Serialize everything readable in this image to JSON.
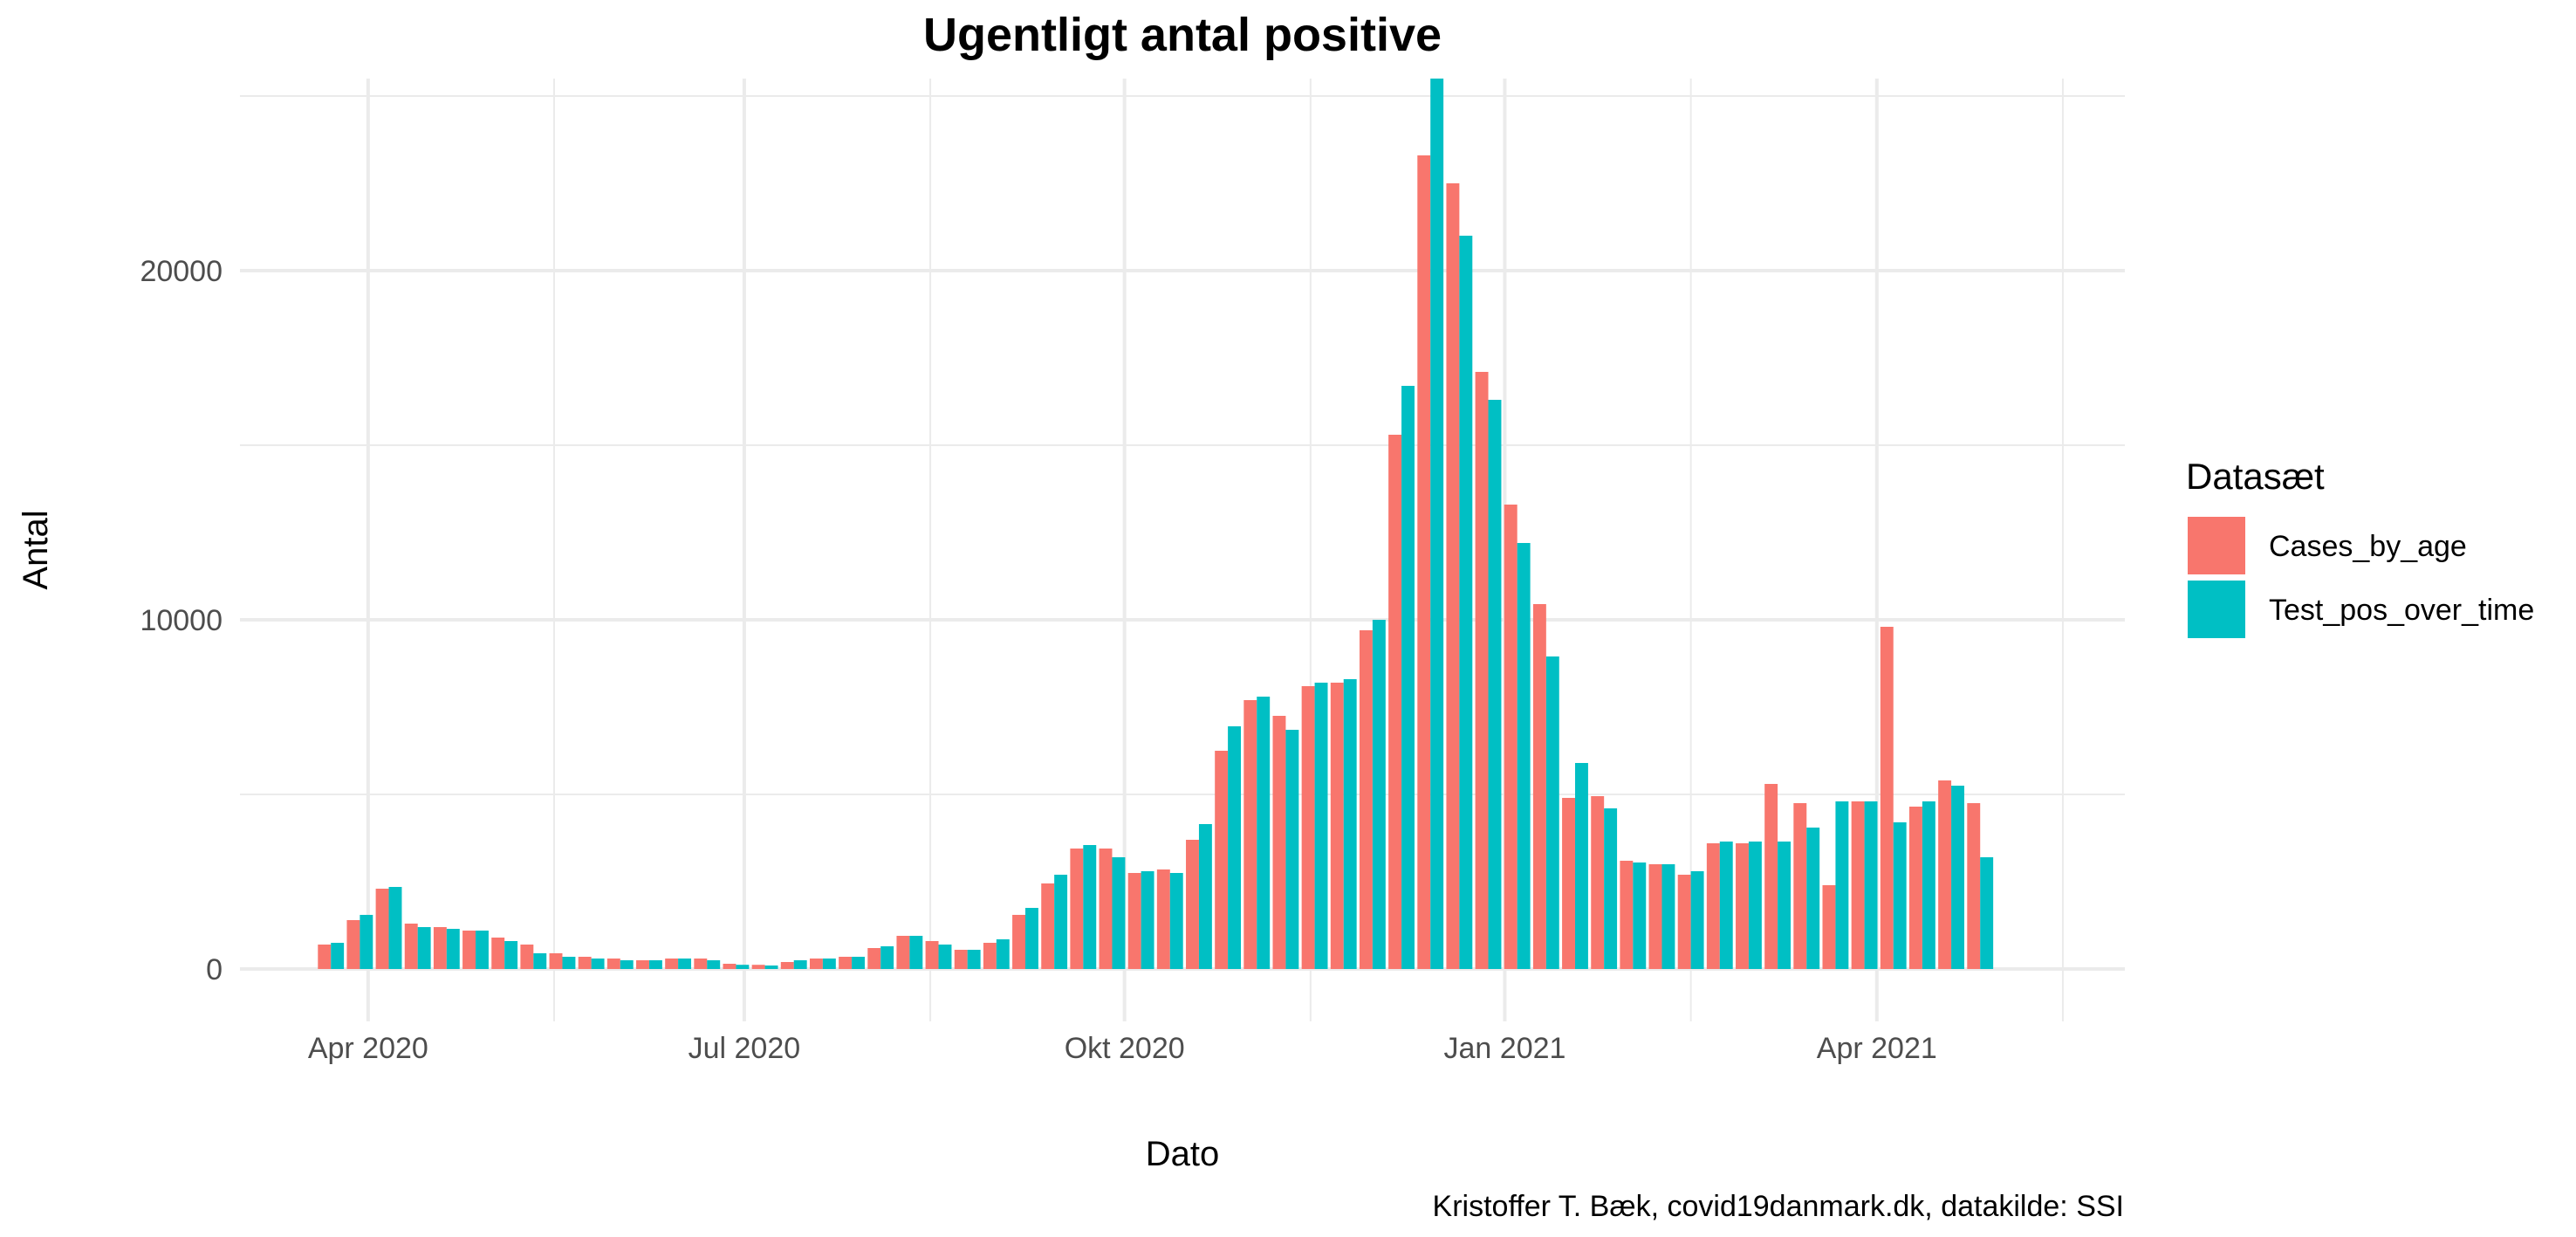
{
  "chart_data": {
    "type": "bar",
    "title": "Ugentligt antal positive",
    "xlabel": "Dato",
    "ylabel": "Antal",
    "caption": "Kristoffer T. Bæk, covid19danmark.dk, datakilde: SSI",
    "ylim": [
      -1500,
      25500
    ],
    "y_ticks": [
      0,
      10000,
      20000
    ],
    "xlim": [
      "2020-03-01",
      "2021-05-31"
    ],
    "x_ticks": [
      {
        "label": "Apr 2020",
        "date": "2020-04-01"
      },
      {
        "label": "Jul 2020",
        "date": "2020-07-01"
      },
      {
        "label": "Okt 2020",
        "date": "2020-10-01"
      },
      {
        "label": "Jan 2021",
        "date": "2021-01-01"
      },
      {
        "label": "Apr 2021",
        "date": "2021-04-01"
      }
    ],
    "grid": true,
    "legend": {
      "title": "Datasæt",
      "position": "right"
    },
    "weeks": [
      "2020-03-23",
      "2020-03-30",
      "2020-04-06",
      "2020-04-13",
      "2020-04-20",
      "2020-04-27",
      "2020-05-04",
      "2020-05-11",
      "2020-05-18",
      "2020-05-25",
      "2020-06-01",
      "2020-06-08",
      "2020-06-15",
      "2020-06-22",
      "2020-06-29",
      "2020-07-06",
      "2020-07-13",
      "2020-07-20",
      "2020-07-27",
      "2020-08-03",
      "2020-08-10",
      "2020-08-17",
      "2020-08-24",
      "2020-08-31",
      "2020-09-07",
      "2020-09-14",
      "2020-09-21",
      "2020-09-28",
      "2020-10-05",
      "2020-10-12",
      "2020-10-19",
      "2020-10-26",
      "2020-11-02",
      "2020-11-09",
      "2020-11-16",
      "2020-11-23",
      "2020-11-30",
      "2020-12-07",
      "2020-12-14",
      "2020-12-21",
      "2020-12-28",
      "2021-01-04",
      "2021-01-11",
      "2021-01-18",
      "2021-01-25",
      "2021-02-01",
      "2021-02-08",
      "2021-02-15",
      "2021-02-22",
      "2021-03-01",
      "2021-03-08",
      "2021-03-15",
      "2021-03-22",
      "2021-03-29",
      "2021-04-05",
      "2021-04-12",
      "2021-04-19",
      "2021-04-26"
    ],
    "series": [
      {
        "name": "Cases_by_age",
        "color": "#F8766D",
        "values": [
          700,
          1400,
          2300,
          1300,
          1200,
          1100,
          900,
          700,
          450,
          350,
          300,
          250,
          300,
          300,
          150,
          120,
          200,
          300,
          350,
          600,
          950,
          800,
          550,
          750,
          1550,
          2450,
          3450,
          3450,
          2750,
          2850,
          3700,
          6250,
          7700,
          7250,
          8100,
          8200,
          9700,
          15300,
          23300,
          22500,
          17100,
          13300,
          10450,
          4900,
          4950,
          3100,
          3000,
          2700,
          3600,
          3600,
          5300,
          4750,
          2400,
          4800,
          9800,
          4650,
          5400,
          4750
        ]
      },
      {
        "name": "Test_pos_over_time",
        "color": "#00BFC4",
        "values": [
          750,
          1550,
          2350,
          1200,
          1150,
          1100,
          800,
          450,
          350,
          300,
          250,
          250,
          300,
          250,
          120,
          100,
          250,
          300,
          350,
          650,
          950,
          700,
          550,
          850,
          1750,
          2700,
          3550,
          3200,
          2800,
          2750,
          4150,
          6950,
          7800,
          6850,
          8200,
          8300,
          10000,
          16700,
          25500,
          21000,
          16300,
          12200,
          8950,
          5900,
          4600,
          3050,
          3000,
          2800,
          3650,
          3650,
          3650,
          4050,
          4800,
          4800,
          4200,
          4800,
          5250,
          3200
        ]
      }
    ]
  }
}
